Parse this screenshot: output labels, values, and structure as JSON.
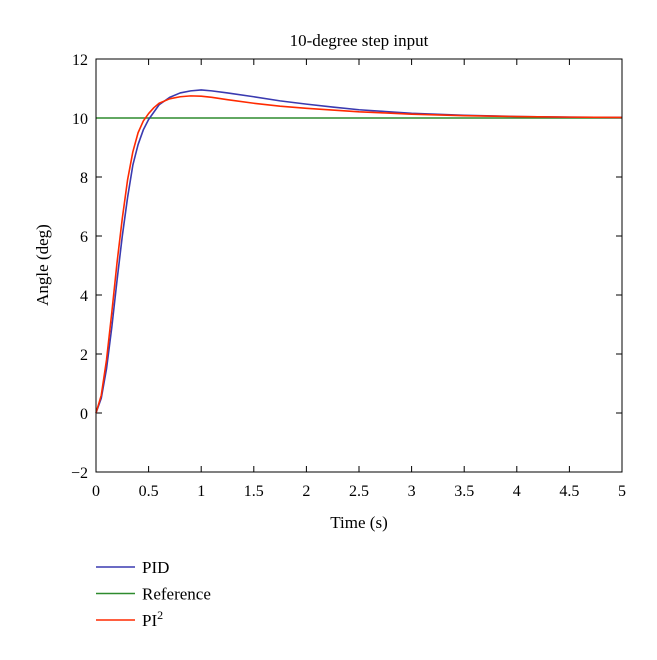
{
  "chart_data": {
    "type": "line",
    "title": "10-degree step input",
    "xlabel": "Time (s)",
    "ylabel": "Angle (deg)",
    "xlim": [
      0,
      5
    ],
    "ylim": [
      -2,
      12
    ],
    "xticks": [
      0,
      0.5,
      1,
      1.5,
      2,
      2.5,
      3,
      3.5,
      4,
      4.5,
      5
    ],
    "xtick_labels": [
      "0",
      "0.5",
      "1",
      "1.5",
      "2",
      "2.5",
      "3",
      "3.5",
      "4",
      "4.5",
      "5"
    ],
    "yticks": [
      -2,
      0,
      2,
      4,
      6,
      8,
      10,
      12
    ],
    "ytick_labels": [
      "−2",
      "0",
      "2",
      "4",
      "6",
      "8",
      "10",
      "12"
    ],
    "grid": false,
    "legend_position": "below",
    "series": [
      {
        "name": "PID",
        "color": "#3a3ab0",
        "x": [
          0,
          0.05,
          0.1,
          0.15,
          0.2,
          0.25,
          0.3,
          0.35,
          0.4,
          0.45,
          0.5,
          0.55,
          0.6,
          0.7,
          0.8,
          0.9,
          1.0,
          1.1,
          1.25,
          1.5,
          1.75,
          2.0,
          2.25,
          2.5,
          2.75,
          3.0,
          3.5,
          4.0,
          4.5,
          5.0
        ],
        "y": [
          0,
          0.5,
          1.5,
          2.9,
          4.5,
          6.0,
          7.3,
          8.4,
          9.1,
          9.6,
          9.95,
          10.2,
          10.45,
          10.7,
          10.85,
          10.92,
          10.95,
          10.92,
          10.85,
          10.72,
          10.58,
          10.47,
          10.37,
          10.28,
          10.22,
          10.16,
          10.09,
          10.05,
          10.03,
          10.02
        ]
      },
      {
        "name": "Reference",
        "color": "#2e8b2e",
        "x": [
          0,
          5
        ],
        "y": [
          10,
          10
        ]
      },
      {
        "name": "PI²",
        "label_base": "PI",
        "label_sup": "2",
        "color": "#ff2a00",
        "x": [
          0,
          0.05,
          0.1,
          0.15,
          0.2,
          0.25,
          0.3,
          0.35,
          0.4,
          0.45,
          0.5,
          0.55,
          0.6,
          0.7,
          0.8,
          0.9,
          1.0,
          1.1,
          1.25,
          1.5,
          1.75,
          2.0,
          2.25,
          2.5,
          2.75,
          3.0,
          3.5,
          4.0,
          4.5,
          5.0
        ],
        "y": [
          0,
          0.6,
          1.8,
          3.4,
          5.1,
          6.6,
          7.9,
          8.85,
          9.5,
          9.9,
          10.15,
          10.35,
          10.5,
          10.65,
          10.72,
          10.75,
          10.74,
          10.7,
          10.62,
          10.5,
          10.4,
          10.33,
          10.27,
          10.21,
          10.17,
          10.13,
          10.08,
          10.05,
          10.03,
          10.02
        ]
      }
    ]
  }
}
